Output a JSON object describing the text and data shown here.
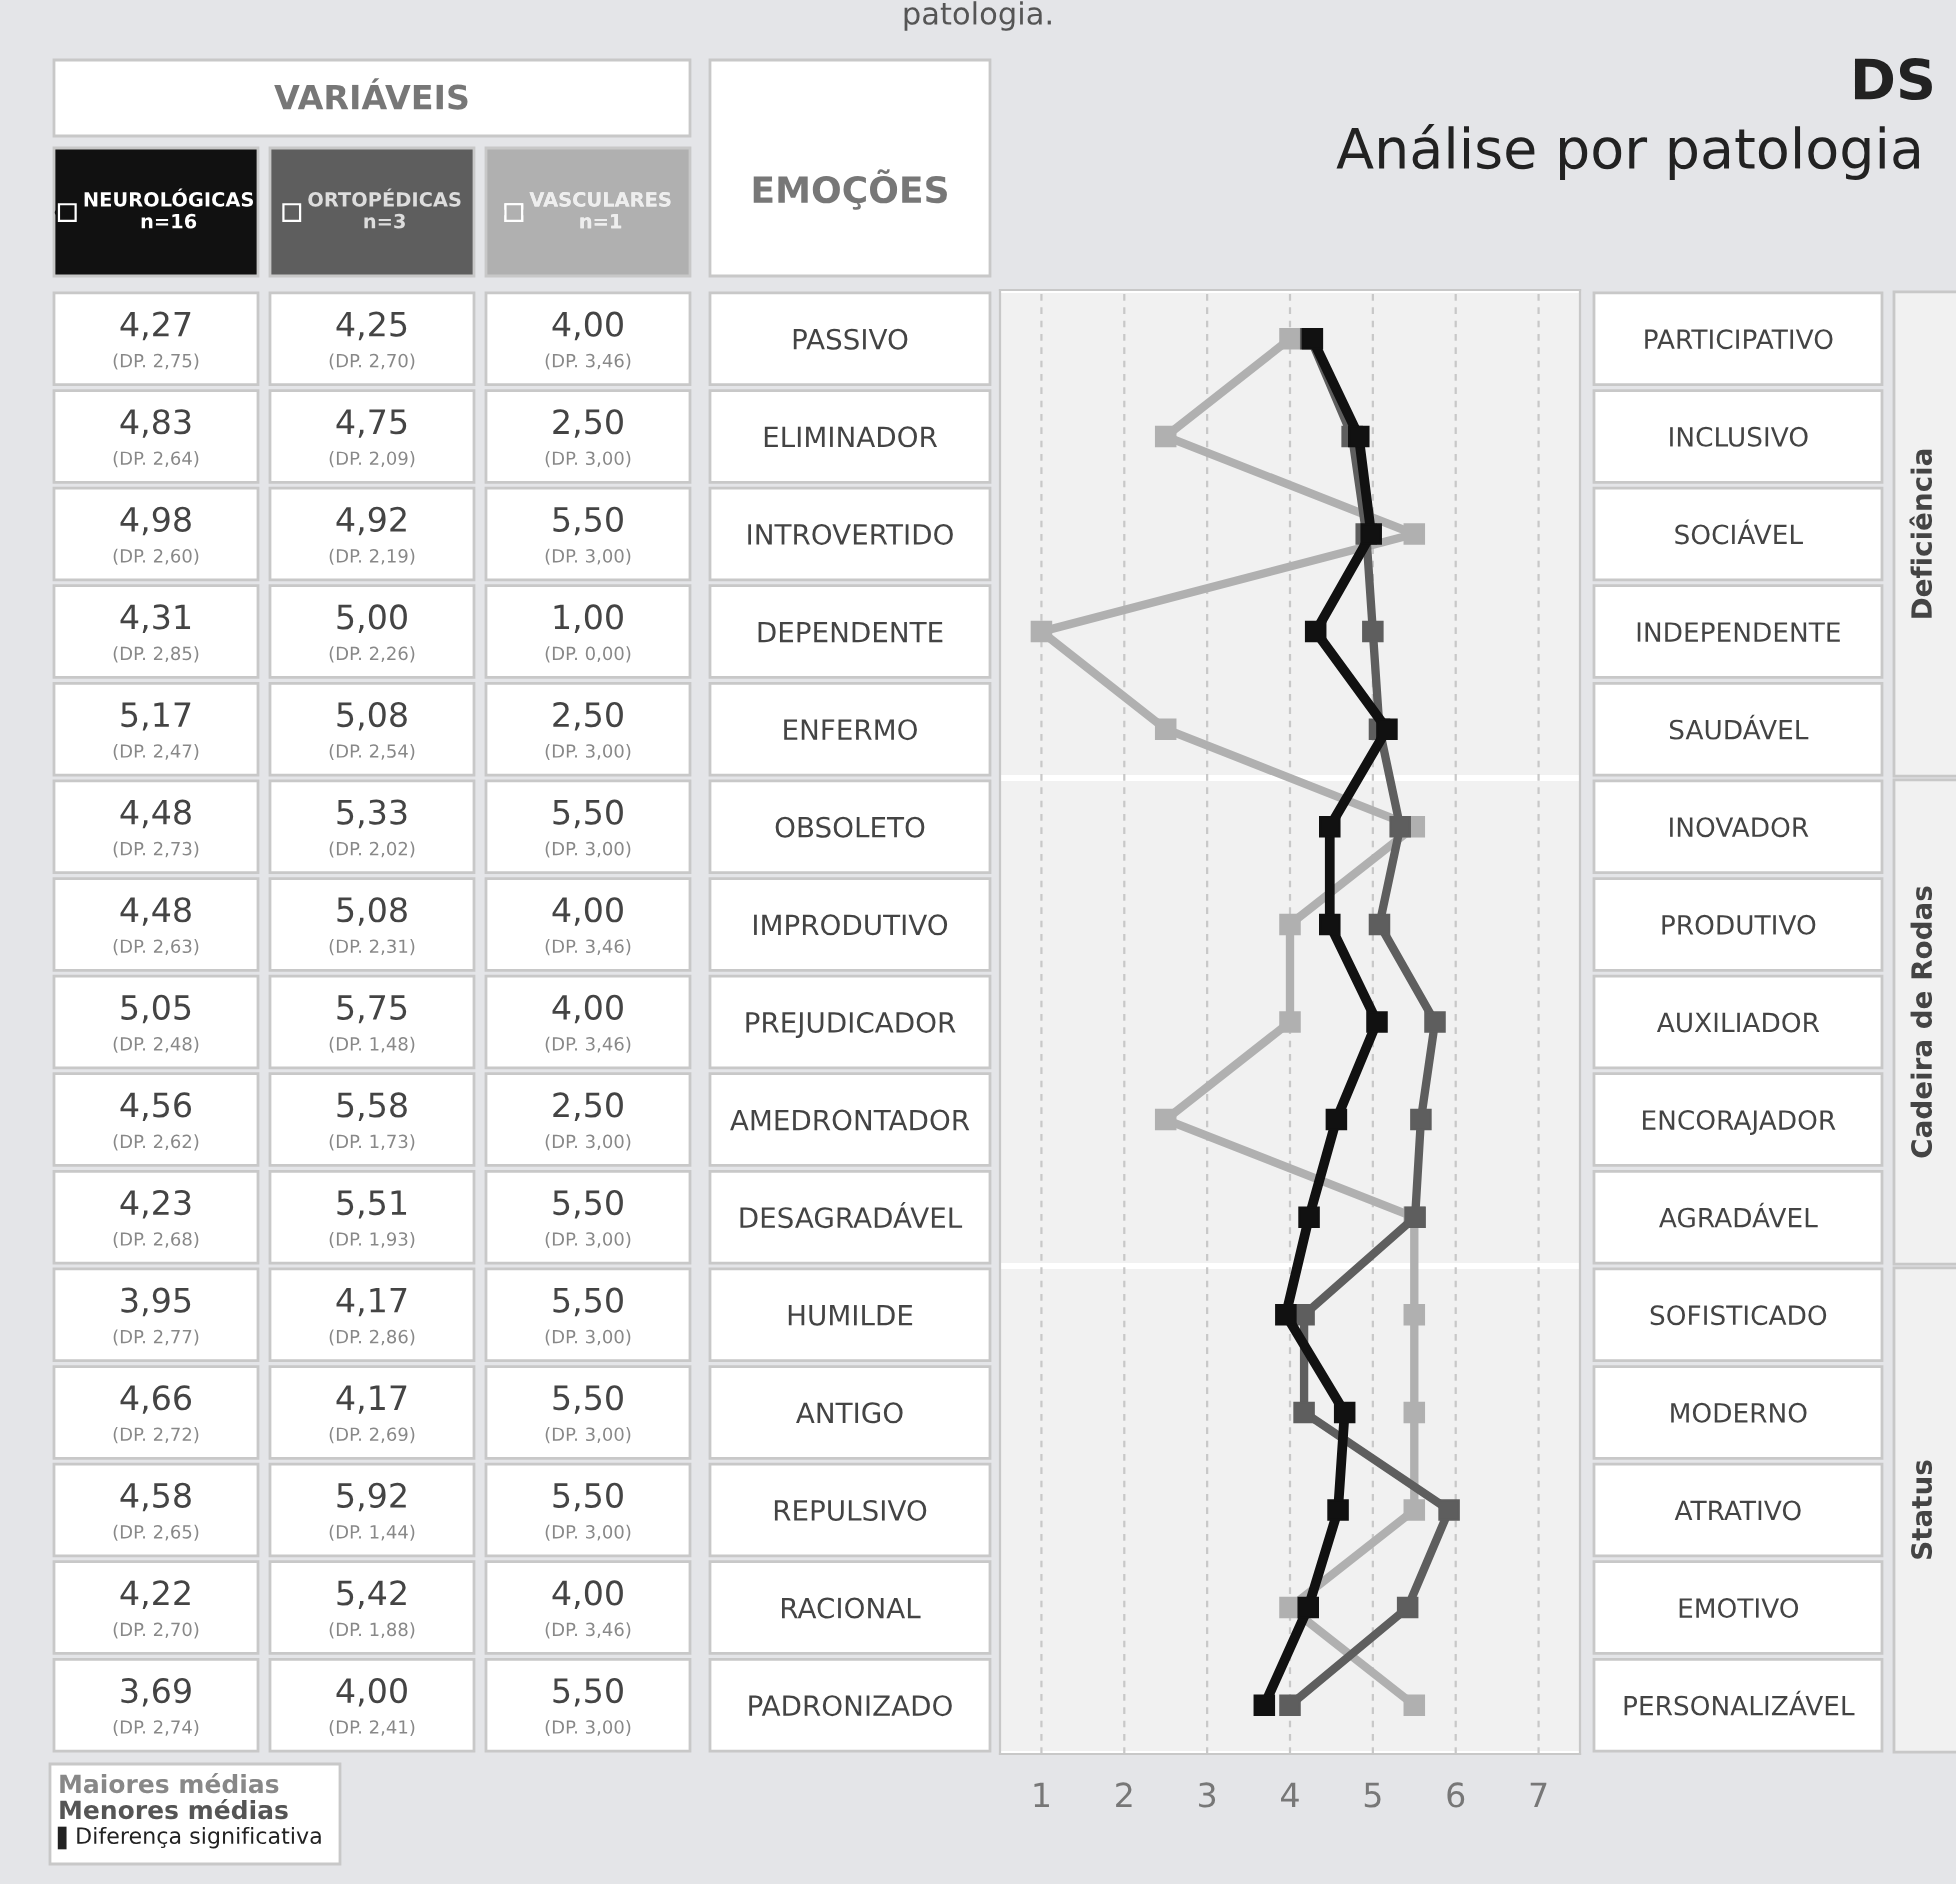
{
  "chart_data": {
    "type": "line",
    "orientation": "horizontal",
    "title": "DS",
    "subtitle": "Análise por patologia",
    "categories": [
      "PASSIVO",
      "ELIMINADOR",
      "INTROVERTIDO",
      "DEPENDENTE",
      "ENFERMO",
      "OBSOLETO",
      "IMPRODUTIVO",
      "PREJUDICADOR",
      "AMEDRONTADOR",
      "DESAGRADÁVEL",
      "HUMILDE",
      "ANTIGO",
      "REPULSIVO",
      "RACIONAL",
      "PADRONIZADO"
    ],
    "y2_categories": [
      "PARTICIPATIVO",
      "INCLUSIVO",
      "SOCIÁVEL",
      "INDEPENDENTE",
      "SAUDÁVEL",
      "INOVADOR",
      "PRODUTIVO",
      "AUXILIADOR",
      "ENCORAJADOR",
      "AGRADÁVEL",
      "SOFISTICADO",
      "MODERNO",
      "ATRATIVO",
      "EMOTIVO",
      "PERSONALIZÁVEL"
    ],
    "series": [
      {
        "name": "NEUROLÓGICAS\nn=16",
        "color": "#111111",
        "values": [
          4.27,
          4.83,
          4.98,
          4.31,
          5.17,
          4.48,
          4.48,
          5.05,
          4.56,
          4.23,
          3.95,
          4.66,
          4.58,
          4.22,
          3.69
        ],
        "value_labels": [
          "4,27\n(DP. 2,75)",
          "4,83\n(DP. 2,64)",
          "4,98\n(DP. 2,60)",
          "4,31\n(DP. 2,85)",
          "5,17\n(DP. 2,47)",
          "4,48\n(DP. 2,73)",
          "4,48\n(DP. 2,63)",
          "5,05\n(DP. 2,48)",
          "4,56\n(DP. 2,62)",
          "4,23\n(DP. 2,68)",
          "3,95\n(DP. 2,77)",
          "4,66\n(DP. 2,72)",
          "4,58\n(DP. 2,65)",
          "4,22\n(DP. 2,70)",
          "3,69\n(DP. 2,74)"
        ]
      },
      {
        "name": "ORTOPÉDICAS\nn=3",
        "color": "#5e5e5e",
        "values": [
          4.25,
          4.75,
          4.92,
          5.0,
          5.08,
          5.33,
          5.08,
          5.75,
          5.58,
          5.51,
          4.17,
          4.17,
          5.92,
          5.42,
          4.0
        ],
        "value_labels": [
          "4,25\n(DP. 2,70)",
          "4,75\n(DP. 2,09)",
          "4,92\n(DP. 2,19)",
          "5,00\n(DP. 2,26)",
          "5,08\n(DP. 2,54)",
          "5,33\n(DP. 2,02)",
          "5,08\n(DP. 2,31)",
          "5,75\n(DP. 1,48)",
          "5,58\n(DP. 1,73)",
          "5,51\n(DP. 1,93)",
          "4,17\n(DP. 2,86)",
          "4,17\n(DP. 2,69)",
          "5,92\n(DP. 1,44)",
          "5,42\n(DP. 1,88)",
          "4,00\n(DP. 2,41)"
        ]
      },
      {
        "name": "VASCULARES\nn=1",
        "color": "#b0b0b0",
        "values": [
          4.0,
          2.5,
          5.5,
          1.0,
          2.5,
          5.5,
          4.0,
          4.0,
          2.5,
          5.5,
          5.5,
          5.5,
          5.5,
          4.0,
          5.5
        ],
        "value_labels": [
          "4,00\n(DP. 3,46)",
          "2,50\n(DP. 3,00)",
          "5,50\n(DP. 3,00)",
          "1,00\n(DP. 0,00)",
          "2,50\n(DP. 3,00)",
          "5,50\n(DP. 3,00)",
          "4,00\n(DP. 3,46)",
          "4,00\n(DP. 3,46)",
          "2,50\n(DP. 3,00)",
          "5,50\n(DP. 3,00)",
          "5,50\n(DP. 3,00)",
          "5,50\n(DP. 3,00)",
          "5,50\n(DP. 3,00)",
          "4,00\n(DP. 3,46)",
          "5,50\n(DP. 3,00)"
        ]
      }
    ],
    "xlim": [
      0.5,
      7.5
    ],
    "xticks": [
      1,
      2,
      3,
      4,
      5,
      6,
      7
    ],
    "grid": "x",
    "marker": "square",
    "line_style": "solid",
    "bands": [
      {
        "axis": "y",
        "from": "PASSIVO",
        "to": "ENFERMO",
        "color": "#f1f1f1"
      },
      {
        "axis": "y",
        "from": "OBSOLETO",
        "to": "DESAGRADÁVEL",
        "color": "#f1f1f1"
      },
      {
        "axis": "y",
        "from": "HUMILDE",
        "to": "PADRONIZADO",
        "color": "#f1f1f1"
      }
    ],
    "legend": "top left",
    "annotations": [
      "patologia.",
      "VARIÁVEIS",
      "EMOÇÕES",
      "Maiores médias",
      "Menores médias",
      "▌Diferença significativa",
      "Deficiência",
      "Cadeira de Rodas",
      "Status"
    ]
  }
}
